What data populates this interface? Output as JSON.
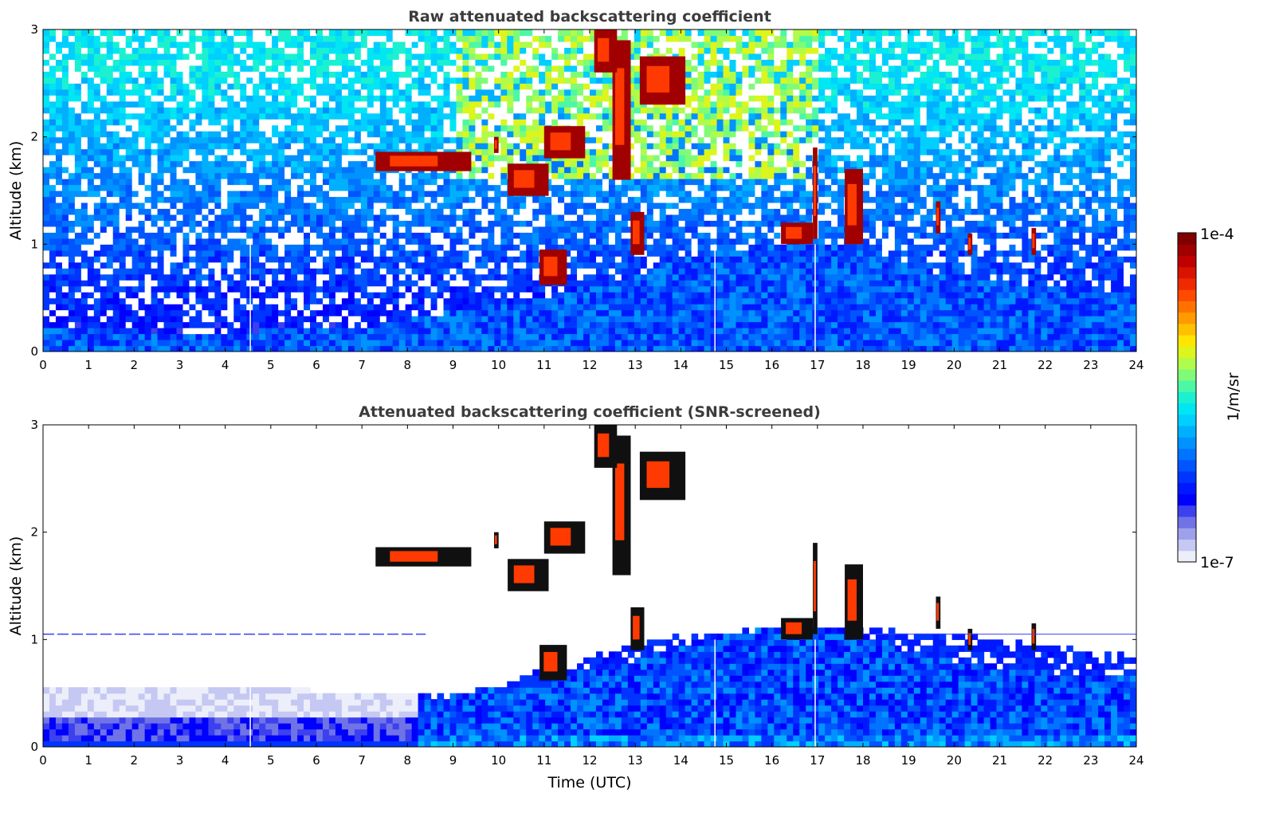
{
  "chart_data": [
    {
      "type": "heatmap",
      "title": "Raw attenuated backscattering coefficient",
      "xlabel": "",
      "ylabel": "Altitude (km)",
      "xlim": [
        0,
        24
      ],
      "ylim": [
        0,
        3
      ],
      "x_ticks": [
        "0",
        "1",
        "2",
        "3",
        "4",
        "5",
        "6",
        "7",
        "8",
        "9",
        "10",
        "11",
        "12",
        "13",
        "14",
        "15",
        "16",
        "17",
        "18",
        "19",
        "20",
        "21",
        "22",
        "23",
        "24"
      ],
      "y_ticks": [
        "0",
        "1",
        "2",
        "3"
      ],
      "boundary_layer_top_km": [
        [
          0,
          0.22
        ],
        [
          2,
          0.2
        ],
        [
          3,
          0.16
        ],
        [
          4,
          0.18
        ],
        [
          5,
          0.2
        ],
        [
          6,
          0.22
        ],
        [
          7,
          0.21
        ],
        [
          8,
          0.3
        ],
        [
          9,
          0.38
        ],
        [
          10,
          0.44
        ],
        [
          11,
          0.5
        ],
        [
          12,
          0.62
        ],
        [
          13,
          0.7
        ],
        [
          14,
          0.85
        ],
        [
          15,
          0.95
        ],
        [
          16,
          1.0
        ],
        [
          17,
          1.05
        ],
        [
          18,
          0.95
        ],
        [
          19,
          0.8
        ],
        [
          20,
          0.7
        ],
        [
          21,
          0.65
        ],
        [
          22,
          0.6
        ],
        [
          23,
          0.55
        ],
        [
          24,
          0.55
        ]
      ],
      "cloud_layers": [
        {
          "x0": 7.3,
          "x1": 9.4,
          "y0": 1.68,
          "y1": 1.86
        },
        {
          "x0": 9.9,
          "x1": 10.0,
          "y0": 1.85,
          "y1": 2.0
        },
        {
          "x0": 10.2,
          "x1": 11.1,
          "y0": 1.45,
          "y1": 1.75
        },
        {
          "x0": 11.0,
          "x1": 11.9,
          "y0": 1.8,
          "y1": 2.1
        },
        {
          "x0": 12.5,
          "x1": 12.9,
          "y0": 1.6,
          "y1": 2.9
        },
        {
          "x0": 13.1,
          "x1": 14.1,
          "y0": 2.3,
          "y1": 2.75
        },
        {
          "x0": 12.1,
          "x1": 12.6,
          "y0": 2.6,
          "y1": 3.0
        },
        {
          "x0": 10.9,
          "x1": 11.5,
          "y0": 0.62,
          "y1": 0.95
        },
        {
          "x0": 12.9,
          "x1": 13.2,
          "y0": 0.9,
          "y1": 1.3
        },
        {
          "x0": 16.2,
          "x1": 16.9,
          "y0": 1.0,
          "y1": 1.2
        },
        {
          "x0": 16.9,
          "x1": 17.0,
          "y0": 1.05,
          "y1": 1.9
        },
        {
          "x0": 17.6,
          "x1": 18.0,
          "y0": 1.0,
          "y1": 1.7
        },
        {
          "x0": 19.6,
          "x1": 19.7,
          "y0": 1.1,
          "y1": 1.4
        },
        {
          "x0": 20.3,
          "x1": 20.4,
          "y0": 0.9,
          "y1": 1.1
        },
        {
          "x0": 21.7,
          "x1": 21.8,
          "y0": 0.9,
          "y1": 1.15
        }
      ]
    },
    {
      "type": "heatmap",
      "title": "Attenuated backscattering coefficient (SNR-screened)",
      "xlabel": "Time (UTC)",
      "ylabel": "Altitude (km)",
      "xlim": [
        0,
        24
      ],
      "ylim": [
        0,
        3
      ],
      "x_ticks": [
        "0",
        "1",
        "2",
        "3",
        "4",
        "5",
        "6",
        "7",
        "8",
        "9",
        "10",
        "11",
        "12",
        "13",
        "14",
        "15",
        "16",
        "17",
        "18",
        "19",
        "20",
        "21",
        "22",
        "23",
        "24"
      ],
      "y_ticks": [
        "0",
        "1",
        "2",
        "3"
      ],
      "residual_layer_line_km": 1.05,
      "screened_top_km": [
        [
          0,
          0.55
        ],
        [
          8,
          0.52
        ],
        [
          9,
          0.5
        ],
        [
          10,
          0.55
        ],
        [
          11,
          0.75
        ],
        [
          12,
          0.85
        ],
        [
          13,
          0.95
        ],
        [
          14,
          1.05
        ],
        [
          16,
          1.1
        ],
        [
          18,
          1.1
        ],
        [
          20,
          1.05
        ],
        [
          22,
          0.95
        ],
        [
          24,
          0.85
        ]
      ]
    }
  ],
  "colorbar": {
    "label": "1/m/sr",
    "max_label": "1e-4",
    "min_label": "1e-7",
    "colors": [
      "#eceefa",
      "#c5c8f2",
      "#9ea1ea",
      "#6f73e6",
      "#3c40ee",
      "#0000ff",
      "#0018ff",
      "#0035ff",
      "#0055ff",
      "#0074ff",
      "#0092ff",
      "#00b0ff",
      "#00cfff",
      "#00e6f2",
      "#1bf1d0",
      "#4cf7a6",
      "#80fb78",
      "#b1fb4a",
      "#dcf51c",
      "#ffe500",
      "#ffc000",
      "#ff9a00",
      "#ff7200",
      "#ff4a00",
      "#f02a00",
      "#d81400",
      "#c00000",
      "#a00000",
      "#800000"
    ]
  }
}
